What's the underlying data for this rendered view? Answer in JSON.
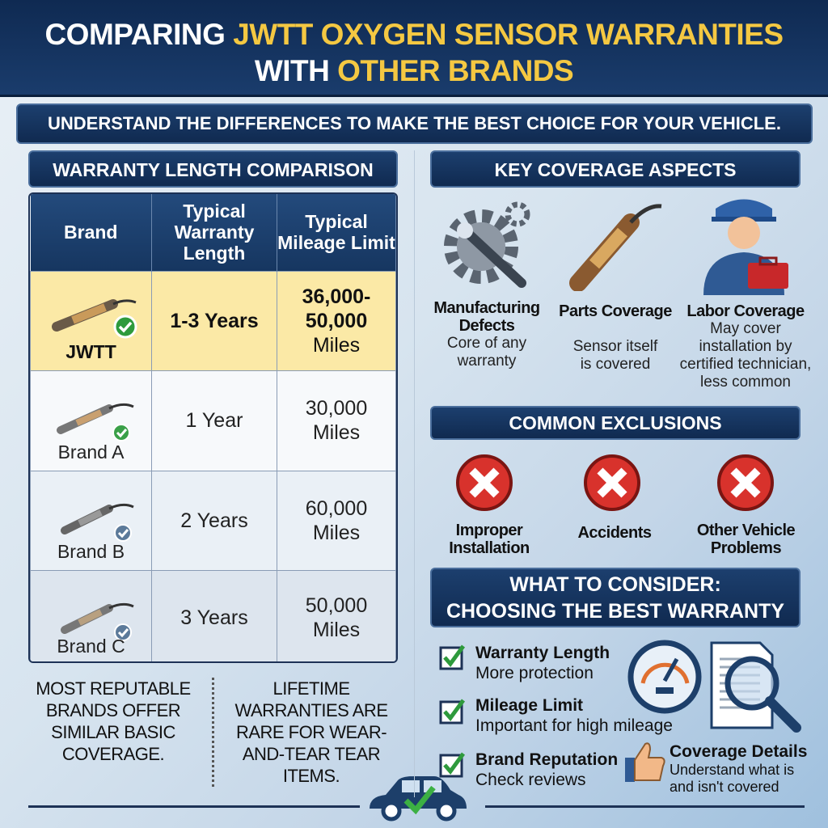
{
  "header": {
    "title_line1_plain": "COMPARING ",
    "title_line1_highlight": "JWTT OXYGEN SENSOR WARRANTIES",
    "title_line2_plain": "WITH ",
    "title_line2_highlight": "OTHER BRANDS",
    "subtitle": "UNDERSTAND THE DIFFERENCES TO MAKE THE BEST CHOICE FOR YOUR VEHICLE."
  },
  "colors": {
    "navy": "#163660",
    "highlight": "#f4c842",
    "jwtt_row": "#fbe9a6",
    "check": "#2e9a3c",
    "exclusion": "#d8322c"
  },
  "comparison": {
    "title": "WARRANTY LENGTH COMPARISON",
    "columns": [
      "Brand",
      "Typical Warranty Length",
      "Typical Mileage Limit"
    ],
    "rows": [
      {
        "brand": "JWTT",
        "length": "1-3 Years",
        "mileage": "36,000-50,000",
        "unit": "Miles"
      },
      {
        "brand": "Brand A",
        "length": "1 Year",
        "mileage": "30,000",
        "unit": "Miles"
      },
      {
        "brand": "Brand B",
        "length": "2 Years",
        "mileage": "60,000",
        "unit": "Miles"
      },
      {
        "brand": "Brand C",
        "length": "3 Years",
        "mileage": "50,000",
        "unit": "Miles"
      }
    ]
  },
  "notes": {
    "left": "MOST REPUTABLE BRANDS OFFER SIMILAR BASIC COVERAGE.",
    "right": "LIFETIME WARRANTIES ARE RARE FOR WEAR-AND-TEAR TEAR ITEMS."
  },
  "coverage": {
    "title": "KEY COVERAGE ASPECTS",
    "items": [
      {
        "icon": "gear-wrench-icon",
        "label": "Manufacturing Defects",
        "desc": "Core of any warranty"
      },
      {
        "icon": "oxygen-sensor-icon",
        "label": "Parts Coverage",
        "desc": "Sensor itself is covered"
      },
      {
        "icon": "technician-icon",
        "label": "Labor Coverage",
        "desc": "May cover installation by certified technician, less common"
      }
    ]
  },
  "exclusions": {
    "title": "COMMON EXCLUSIONS",
    "items": [
      "Improper Installation",
      "Accidents",
      "Other Vehicle Problems"
    ]
  },
  "consider": {
    "title_line1": "WHAT TO CONSIDER:",
    "title_line2": "CHOOSING THE BEST WARRANTY",
    "items": [
      {
        "label": "Warranty Length",
        "desc": "More protection"
      },
      {
        "label": "Mileage Limit",
        "desc": "Important for high mileage"
      },
      {
        "label": "Brand Reputation",
        "desc": "Check reviews"
      }
    ],
    "extra": {
      "label": "Coverage Details",
      "desc": "Understand what is and isn't covered"
    }
  }
}
